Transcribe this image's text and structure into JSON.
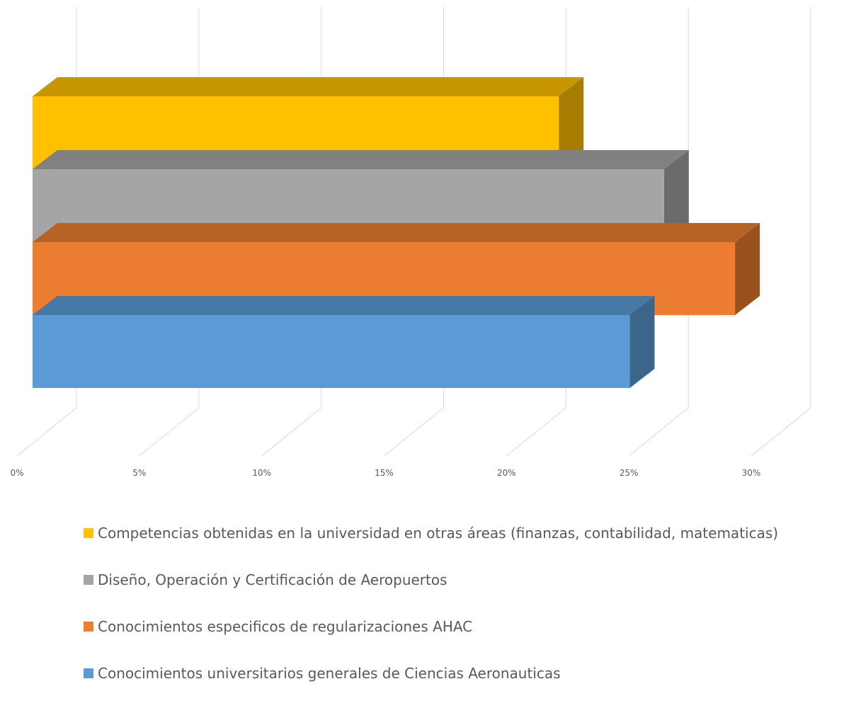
{
  "chart_data": {
    "type": "bar",
    "orientation": "horizontal",
    "style": "3d",
    "xlim": [
      0,
      0.3
    ],
    "x_ticks": [
      "0%",
      "5%",
      "10%",
      "15%",
      "20%",
      "25%",
      "30%"
    ],
    "grid": true,
    "legend_position": "bottom",
    "series": [
      {
        "name": "Competencias obtenidas en la universidad en otras áreas (finanzas, contabilidad, matematicas)",
        "value": 0.215,
        "color": "#FFC000"
      },
      {
        "name": "Diseño, Operación y Certificación de Aeropuertos",
        "value": 0.258,
        "color": "#A5A5A5"
      },
      {
        "name": "Conocimientos especificos de regularizaciones AHAC",
        "value": 0.287,
        "color": "#ED7D31"
      },
      {
        "name": "Conocimientos universitarios generales de Ciencias Aeronauticas",
        "value": 0.244,
        "color": "#5B9BD5"
      }
    ]
  }
}
